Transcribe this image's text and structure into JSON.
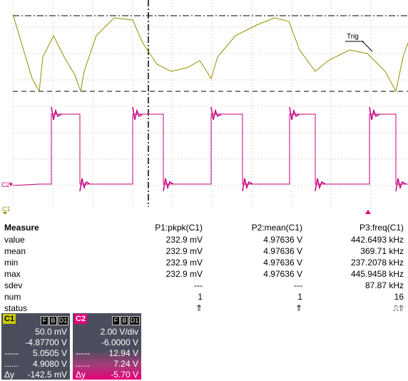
{
  "scope": {
    "trig_label": "Trig",
    "ch1_label": "C1",
    "ch2_label": "C2",
    "colors": {
      "ch1": "#8f8f00",
      "ch2": "#c4007a",
      "grid": "#b8b8b8"
    }
  },
  "measure": {
    "title": "Measure",
    "headers": [
      "P1:pkpk(C1)",
      "P2:mean(C1)",
      "P3:freq(C1)"
    ],
    "rows": [
      {
        "label": "value",
        "p1": "232.9 mV",
        "p2": "4.97636 V",
        "p3": "442.6493 kHz"
      },
      {
        "label": "mean",
        "p1": "232.9 mV",
        "p2": "4.97636 V",
        "p3": "369.71 kHz"
      },
      {
        "label": "min",
        "p1": "232.9 mV",
        "p2": "4.97636 V",
        "p3": "237.2078 kHz"
      },
      {
        "label": "max",
        "p1": "232.9 mV",
        "p2": "4.97636 V",
        "p3": "445.9458 kHz"
      },
      {
        "label": "sdev",
        "p1": "---",
        "p2": "---",
        "p3": "87.87 kHz"
      },
      {
        "label": "num",
        "p1": "1",
        "p2": "1",
        "p3": "16"
      },
      {
        "label": "status",
        "p1": "⇑",
        "p2": "⇑",
        "p3": "⎍⇑"
      }
    ]
  },
  "panels": {
    "c1": {
      "name": "C1",
      "flags": [
        "F",
        "B",
        "D1"
      ],
      "scale": "50.0 mV",
      "offset": "-4.87700 V",
      "cursor1_label": "-----",
      "cursor1": "5.0505 V",
      "cursor2_label": "......",
      "cursor2": "4.9080 V",
      "delta_label": "Δy",
      "delta": "-142.5 mV"
    },
    "c2": {
      "name": "C2",
      "flags": [
        "F",
        "B",
        "D1"
      ],
      "scale": "2.00 V/div",
      "offset": "-6.0000 V",
      "cursor1_label": "-----",
      "cursor1": "12.94 V",
      "cursor2_label": "......",
      "cursor2": "7.24 V",
      "delta_label": "Δy",
      "delta": "-5.70 V"
    }
  }
}
